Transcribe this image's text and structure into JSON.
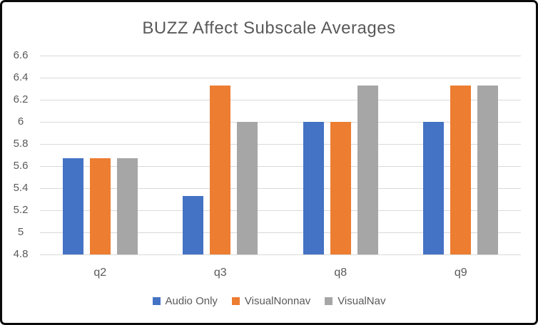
{
  "chart_data": {
    "type": "bar",
    "title": "BUZZ Affect Subscale Averages",
    "categories": [
      "q2",
      "q3",
      "q8",
      "q9"
    ],
    "series": [
      {
        "name": "Audio Only",
        "color": "#4472C4",
        "values": [
          5.67,
          5.33,
          6.0,
          6.0
        ]
      },
      {
        "name": "VisualNonnav",
        "color": "#ED7D31",
        "values": [
          5.67,
          6.33,
          6.0,
          6.33
        ]
      },
      {
        "name": "VisualNav",
        "color": "#A6A6A6",
        "values": [
          5.67,
          6.0,
          6.33,
          6.33
        ]
      }
    ],
    "ylim": [
      4.8,
      6.6
    ],
    "ytick_step": 0.2,
    "ytick_labels": [
      "4.8",
      "5",
      "5.2",
      "5.4",
      "5.6",
      "5.8",
      "6",
      "6.2",
      "6.4",
      "6.6"
    ],
    "xlabel": "",
    "ylabel": "",
    "grid": true,
    "legend_position": "bottom"
  },
  "colors": {
    "text": "#595959",
    "gridline": "#D9D9D9",
    "background": "#FFFFFF",
    "border": "#0B0B0B"
  }
}
